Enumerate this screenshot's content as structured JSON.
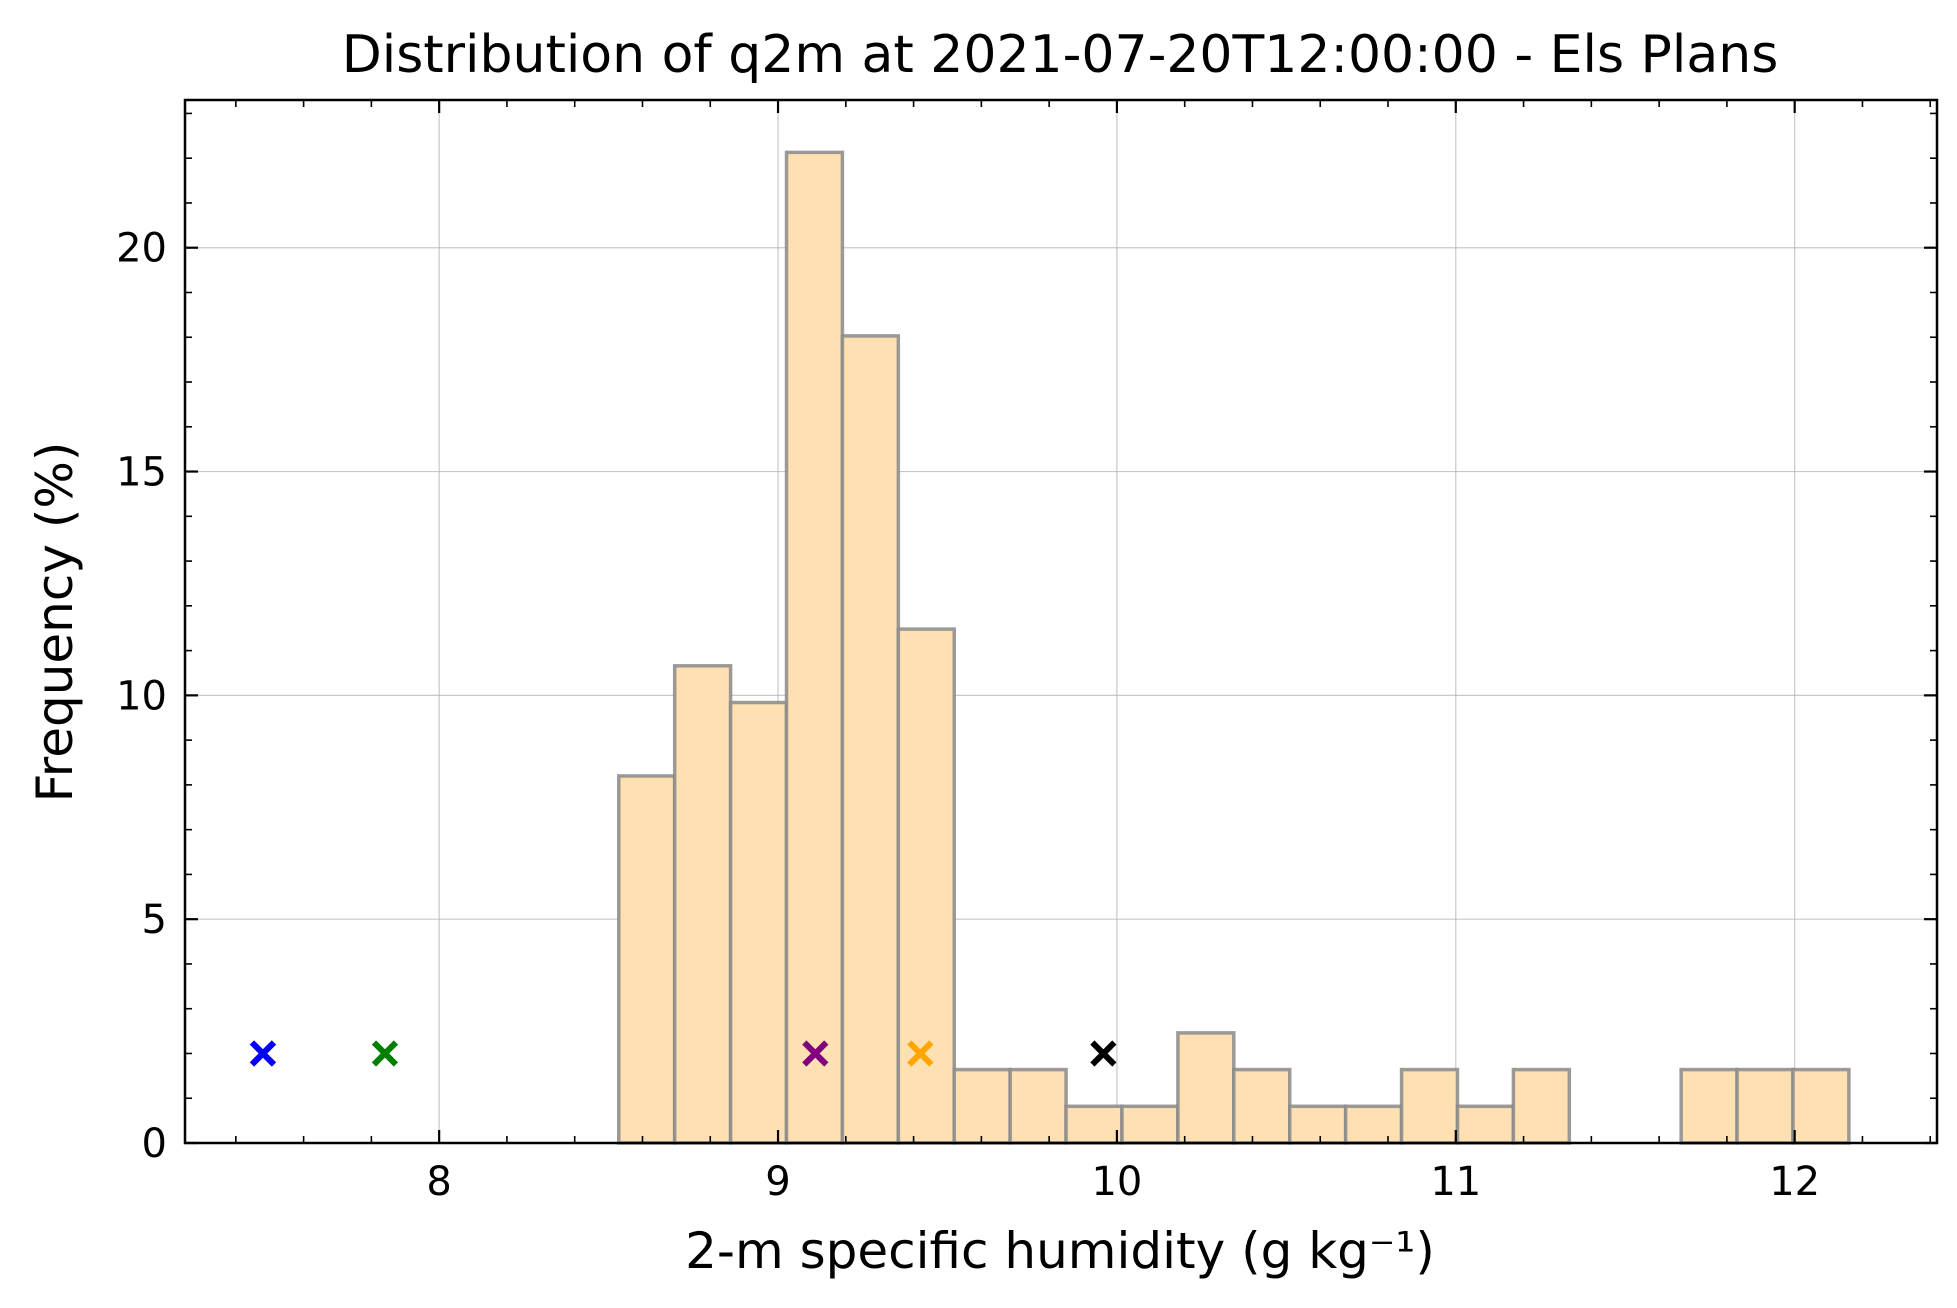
{
  "chart_data": {
    "type": "bar",
    "title": "Distribution of q2m at 2021-07-20T12:00:00 - Els Plans",
    "xlabel": "2-m specific humidity (g kg⁻¹)",
    "ylabel": "Frequency (%)",
    "xlim": [
      7.25,
      12.42
    ],
    "ylim": [
      0,
      23.3
    ],
    "xticks": [
      8,
      9,
      10,
      11,
      12
    ],
    "yticks": [
      0,
      5,
      10,
      15,
      20
    ],
    "grid": true,
    "bins": [
      {
        "x0": 8.53,
        "x1": 8.695,
        "value": 8.2
      },
      {
        "x0": 8.695,
        "x1": 8.86,
        "value": 10.66
      },
      {
        "x0": 8.86,
        "x1": 9.025,
        "value": 9.84
      },
      {
        "x0": 9.025,
        "x1": 9.19,
        "value": 22.13
      },
      {
        "x0": 9.19,
        "x1": 9.355,
        "value": 18.03
      },
      {
        "x0": 9.355,
        "x1": 9.52,
        "value": 11.48
      },
      {
        "x0": 9.52,
        "x1": 9.685,
        "value": 1.64
      },
      {
        "x0": 9.685,
        "x1": 9.85,
        "value": 1.64
      },
      {
        "x0": 9.85,
        "x1": 10.015,
        "value": 0.82
      },
      {
        "x0": 10.015,
        "x1": 10.18,
        "value": 0.82
      },
      {
        "x0": 10.18,
        "x1": 10.345,
        "value": 2.46
      },
      {
        "x0": 10.345,
        "x1": 10.51,
        "value": 1.64
      },
      {
        "x0": 10.51,
        "x1": 10.675,
        "value": 0.82
      },
      {
        "x0": 10.675,
        "x1": 10.84,
        "value": 0.82
      },
      {
        "x0": 10.84,
        "x1": 11.005,
        "value": 1.64
      },
      {
        "x0": 11.005,
        "x1": 11.17,
        "value": 0.82
      },
      {
        "x0": 11.17,
        "x1": 11.335,
        "value": 1.64
      },
      {
        "x0": 11.335,
        "x1": 11.5,
        "value": 0
      },
      {
        "x0": 11.5,
        "x1": 11.665,
        "value": 0
      },
      {
        "x0": 11.665,
        "x1": 11.83,
        "value": 1.64
      },
      {
        "x0": 11.83,
        "x1": 11.995,
        "value": 1.64
      },
      {
        "x0": 11.995,
        "x1": 12.16,
        "value": 1.64
      }
    ],
    "bar_fill": "#ffe0b2",
    "bar_edge": "#8a8a8a",
    "markers": [
      {
        "x": 7.48,
        "y": 2,
        "color": "#ff0000"
      },
      {
        "x": 7.48,
        "y": 2,
        "color": "#0000ff"
      },
      {
        "x": 7.84,
        "y": 2,
        "color": "#008000"
      },
      {
        "x": 9.11,
        "y": 2,
        "color": "#800080"
      },
      {
        "x": 9.42,
        "y": 2,
        "color": "#ffa500"
      },
      {
        "x": 9.96,
        "y": 2,
        "color": "#000000"
      }
    ]
  }
}
